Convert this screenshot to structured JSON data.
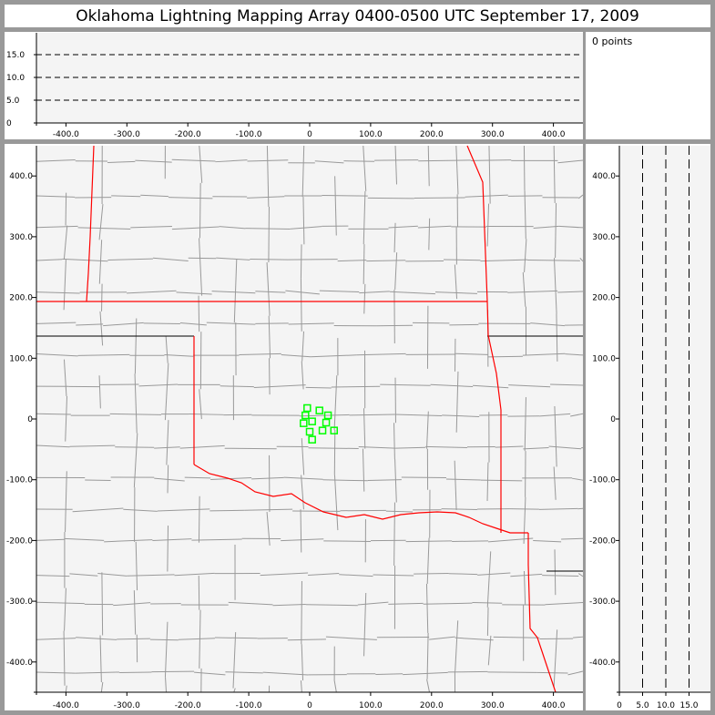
{
  "title": "Oklahoma Lightning Mapping Array   0400-0500 UTC  September 17, 2009",
  "info": {
    "points_label": "0 points"
  },
  "colors": {
    "background": "#999999",
    "plot_bg": "#f4f4f4",
    "state_border": "#ff0000",
    "county_border": "#999999",
    "source_marker": "#00ff00"
  },
  "chart_data": [
    {
      "type": "scatter",
      "panel": "altitude-vs-east-west",
      "xlim": [
        -460,
        450
      ],
      "ylim": [
        0,
        20
      ],
      "xticks": [
        "-400.0",
        "-300.0",
        "-200.0",
        "-100.0",
        "0",
        "100.0",
        "200.0",
        "300.0",
        "400.0"
      ],
      "yticks": [
        "0",
        "5.0",
        "10.0",
        "15.0"
      ],
      "grid": "dashed horizontal at 5, 10, 15",
      "points": []
    },
    {
      "type": "scatter",
      "panel": "plan-view-map",
      "xlim": [
        -450,
        450
      ],
      "ylim": [
        -450,
        450
      ],
      "xticks": [
        "-400.0",
        "-300.0",
        "-200.0",
        "-100.0",
        "0",
        "100.0",
        "200.0",
        "300.0",
        "400.0"
      ],
      "yticks": [
        "400.0",
        "300.0",
        "200.0",
        "100.0",
        "0",
        "-100.0",
        "-200.0",
        "-300.0",
        "-400.0"
      ],
      "marker": "open-square",
      "points": [
        [
          -4,
          18
        ],
        [
          16,
          14
        ],
        [
          30,
          6
        ],
        [
          -7,
          6
        ],
        [
          4,
          -4
        ],
        [
          -10,
          -7
        ],
        [
          27,
          -6
        ],
        [
          0,
          -21
        ],
        [
          21,
          -19
        ],
        [
          40,
          -19
        ],
        [
          4,
          -34
        ]
      ]
    },
    {
      "type": "scatter",
      "panel": "north-south-vs-altitude",
      "xlim": [
        0,
        20
      ],
      "ylim": [
        -450,
        450
      ],
      "xticks": [
        "0",
        "5.0",
        "10.0",
        "15.0"
      ],
      "yticks": [
        "400.0",
        "300.0",
        "200.0",
        "100.0",
        "0",
        "-100.0",
        "-200.0",
        "-300.0",
        "-400.0"
      ],
      "grid": "dashed vertical at 5, 10, 15",
      "points": []
    }
  ]
}
